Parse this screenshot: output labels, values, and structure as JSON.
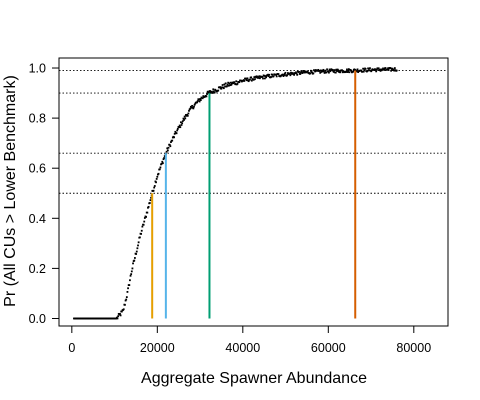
{
  "chart_data": {
    "type": "scatter",
    "title": "",
    "xlabel": "Aggregate Spawner Abundance",
    "ylabel": "Pr (All CUs > Lower Benchmark)",
    "xlim": [
      -3000,
      88000
    ],
    "ylim": [
      -0.03,
      1.04
    ],
    "x_ticks": [
      0,
      20000,
      40000,
      60000,
      80000
    ],
    "x_tick_labels": [
      "0",
      "20000",
      "40000",
      "60000",
      "80000"
    ],
    "y_ticks": [
      0.0,
      0.2,
      0.4,
      0.6,
      0.8,
      1.0
    ],
    "y_tick_labels": [
      "0.0",
      "0.2",
      "0.4",
      "0.6",
      "0.8",
      "1.0"
    ],
    "grid": false,
    "probability_curve": {
      "x_range": [
        500,
        76000
      ],
      "key_points": [
        [
          500,
          0.0
        ],
        [
          10500,
          0.0
        ],
        [
          12000,
          0.03
        ],
        [
          13000,
          0.1
        ],
        [
          14000,
          0.19
        ],
        [
          15000,
          0.26
        ],
        [
          16000,
          0.33
        ],
        [
          17000,
          0.39
        ],
        [
          18000,
          0.45
        ],
        [
          18800,
          0.5
        ],
        [
          20000,
          0.57
        ],
        [
          22000,
          0.66
        ],
        [
          24000,
          0.73
        ],
        [
          26000,
          0.79
        ],
        [
          28000,
          0.84
        ],
        [
          30000,
          0.875
        ],
        [
          32000,
          0.9
        ],
        [
          36000,
          0.93
        ],
        [
          40000,
          0.95
        ],
        [
          45000,
          0.965
        ],
        [
          50000,
          0.975
        ],
        [
          55000,
          0.983
        ],
        [
          60000,
          0.988
        ],
        [
          66000,
          0.99
        ],
        [
          70000,
          0.993
        ],
        [
          76000,
          0.995
        ]
      ]
    },
    "reference_lines": [
      0.5,
      0.66,
      0.9,
      0.99
    ],
    "benchmark_lines": [
      {
        "x": 18800,
        "y": 0.5,
        "color": "#E69F00"
      },
      {
        "x": 22000,
        "y": 0.66,
        "color": "#56B4E9"
      },
      {
        "x": 32200,
        "y": 0.9,
        "color": "#009E73"
      },
      {
        "x": 66300,
        "y": 0.99,
        "color": "#D55E00"
      }
    ]
  }
}
